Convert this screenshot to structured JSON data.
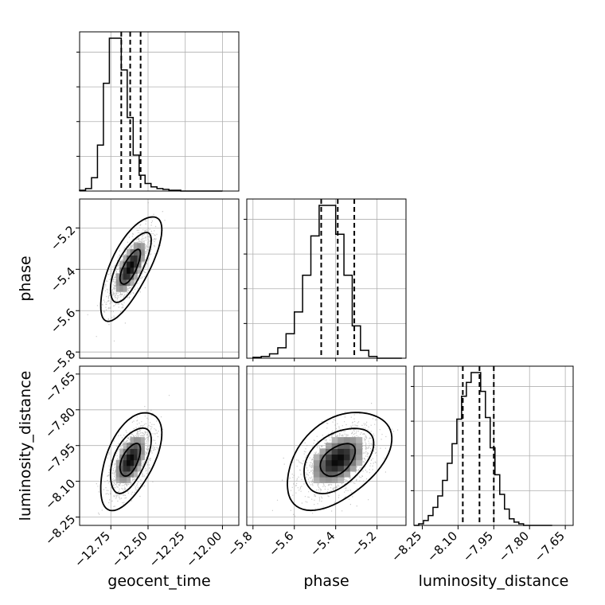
{
  "chart_data": {
    "type": "corner",
    "parameters": [
      "geocent_time",
      "phase",
      "luminosity_distance"
    ],
    "axis_labels": {
      "x": [
        "geocent_time",
        "phase",
        "luminosity_distance"
      ],
      "y": [
        "",
        "phase",
        "luminosity_distance"
      ]
    },
    "ranges": {
      "geocent_time": [
        -12.96,
        -11.89
      ],
      "phase": [
        -5.83,
        -5.06
      ],
      "luminosity_distance": [
        -8.285,
        -7.617
      ]
    },
    "ticks": {
      "geocent_time": [
        {
          "value": -12.75,
          "label": "−12.75"
        },
        {
          "value": -12.5,
          "label": "−12.50"
        },
        {
          "value": -12.25,
          "label": "−12.25"
        },
        {
          "value": -12.0,
          "label": "−12.00"
        }
      ],
      "phase": [
        {
          "value": -5.8,
          "label": "−5.8"
        },
        {
          "value": -5.6,
          "label": "−5.6"
        },
        {
          "value": -5.4,
          "label": "−5.4"
        },
        {
          "value": -5.2,
          "label": "−5.2"
        }
      ],
      "luminosity_distance": [
        {
          "value": -8.25,
          "label": "−8.25"
        },
        {
          "value": -8.1,
          "label": "−8.10"
        },
        {
          "value": -7.95,
          "label": "−7.95"
        },
        {
          "value": -7.8,
          "label": "−7.80"
        },
        {
          "value": -7.65,
          "label": "−7.65"
        }
      ]
    },
    "quantiles": {
      "geocent_time": [
        -12.68,
        -12.62,
        -12.55
      ],
      "phase": [
        -5.47,
        -5.39,
        -5.31
      ],
      "luminosity_distance": [
        -8.08,
        -8.01,
        -7.95
      ]
    },
    "histograms": {
      "geocent_time": {
        "edges": [
          -12.96,
          -12.92,
          -12.88,
          -12.84,
          -12.8,
          -12.76,
          -12.72,
          -12.68,
          -12.64,
          -12.6,
          -12.56,
          -12.52,
          -12.48,
          -12.44,
          -12.4,
          -12.36,
          -12.32,
          -12.28,
          -12.24,
          -12.2,
          -12.16,
          -12.12,
          -12.08,
          -12.04,
          -12.0
        ],
        "counts": [
          1,
          3,
          16,
          55,
          129,
          183,
          183,
          145,
          88,
          43,
          19,
          9,
          5,
          3,
          2,
          1,
          1,
          0,
          0,
          0,
          0,
          0,
          0,
          0
        ]
      },
      "phase": {
        "edges": [
          -5.8,
          -5.76,
          -5.72,
          -5.68,
          -5.64,
          -5.6,
          -5.56,
          -5.52,
          -5.48,
          -5.44,
          -5.4,
          -5.36,
          -5.32,
          -5.28,
          -5.24,
          -5.2,
          -5.16,
          -5.12,
          -5.08
        ],
        "counts": [
          1,
          2,
          5,
          12,
          28,
          53,
          95,
          140,
          175,
          175,
          142,
          95,
          37,
          9,
          2,
          0,
          0,
          0
        ]
      },
      "luminosity_distance": {
        "edges": [
          -8.285,
          -8.265,
          -8.245,
          -8.225,
          -8.205,
          -8.185,
          -8.165,
          -8.145,
          -8.125,
          -8.105,
          -8.085,
          -8.065,
          -8.045,
          -8.025,
          -8.005,
          -7.985,
          -7.965,
          -7.945,
          -7.925,
          -7.905,
          -7.885,
          -7.865,
          -7.845,
          -7.825,
          -7.805,
          -7.785,
          -7.765,
          -7.745,
          -7.725,
          -7.705
        ],
        "counts": [
          0,
          2,
          6,
          12,
          22,
          36,
          55,
          76,
          100,
          130,
          158,
          175,
          187,
          187,
          164,
          132,
          95,
          62,
          38,
          20,
          8,
          4,
          2,
          0,
          0,
          0,
          0,
          0,
          0
        ]
      }
    },
    "correlation": {
      "phase|geocent_time": 0.72,
      "luminosity_distance|geocent_time": 0.55,
      "luminosity_distance|phase": 0.45
    },
    "credible_levels": [
      0.393,
      0.865,
      0.989
    ],
    "grid": true,
    "quantile_style": "dashed",
    "colors": {
      "line": "#000000",
      "grid": "#b0b0b0",
      "points": "#9a9a9a"
    }
  }
}
